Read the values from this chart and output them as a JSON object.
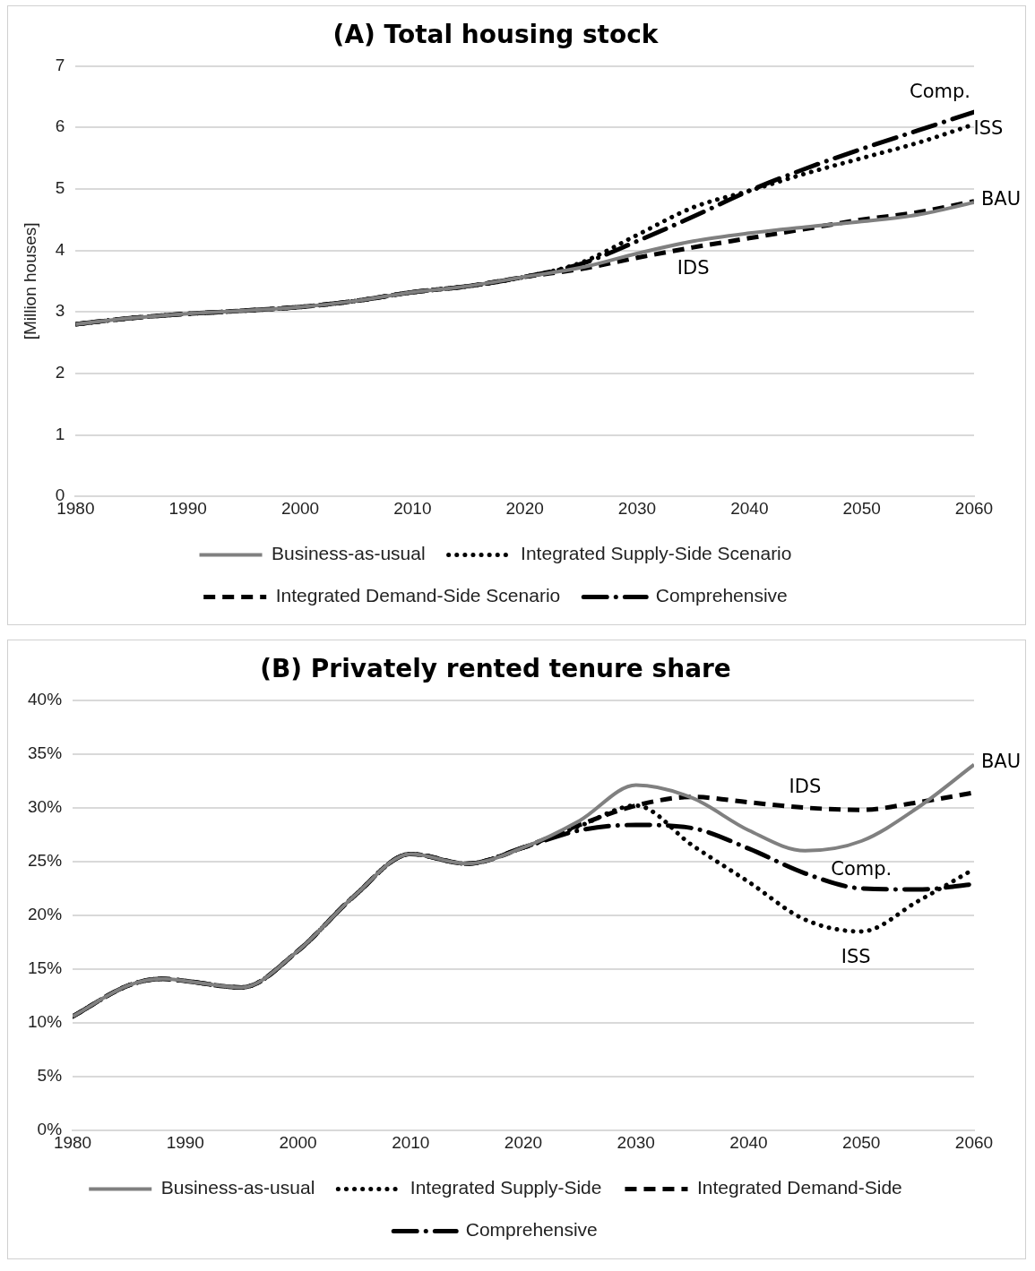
{
  "chart_data": [
    {
      "type": "line",
      "title": "(A) Total housing stock",
      "ylabel": "[Million houses]",
      "x": [
        1980,
        1985,
        1990,
        1995,
        2000,
        2005,
        2010,
        2015,
        2020,
        2025,
        2030,
        2035,
        2040,
        2045,
        2050,
        2055,
        2060
      ],
      "xlim": [
        1980,
        2060
      ],
      "xticks": [
        1980,
        1990,
        2000,
        2010,
        2020,
        2030,
        2040,
        2050,
        2060
      ],
      "ylim": [
        0,
        7
      ],
      "yticks": [
        0,
        1,
        2,
        3,
        4,
        5,
        6,
        7
      ],
      "grid": "y",
      "legend": "bottom",
      "marker": "none",
      "series": [
        {
          "name": "Business-as-usual",
          "color": "#808080",
          "line_style": "solid",
          "values": [
            2.8,
            2.9,
            2.97,
            3.02,
            3.08,
            3.18,
            3.32,
            3.42,
            3.57,
            3.72,
            3.95,
            4.15,
            4.28,
            4.38,
            4.47,
            4.58,
            4.78
          ]
        },
        {
          "name": "Integrated Supply-Side Scenario",
          "color": "#000000",
          "line_style": "dotted",
          "values": [
            2.8,
            2.9,
            2.97,
            3.02,
            3.08,
            3.18,
            3.32,
            3.42,
            3.57,
            3.8,
            4.25,
            4.7,
            4.97,
            5.25,
            5.5,
            5.75,
            6.05
          ]
        },
        {
          "name": "Integrated Demand-Side Scenario",
          "color": "#000000",
          "line_style": "dashed",
          "values": [
            2.8,
            2.9,
            2.97,
            3.02,
            3.08,
            3.18,
            3.32,
            3.42,
            3.57,
            3.7,
            3.88,
            4.05,
            4.2,
            4.35,
            4.5,
            4.62,
            4.8
          ]
        },
        {
          "name": "Comprehensive",
          "color": "#000000",
          "line_style": "dashed",
          "values": [
            2.8,
            2.9,
            2.97,
            3.02,
            3.08,
            3.18,
            3.32,
            3.42,
            3.57,
            3.78,
            4.15,
            4.55,
            4.97,
            5.33,
            5.65,
            5.95,
            6.25
          ]
        }
      ],
      "annotations": [
        {
          "text": "Comp.",
          "x": 2060,
          "y": 6.25
        },
        {
          "text": "ISS",
          "x": 2060,
          "y": 6.05
        },
        {
          "text": "BAU",
          "x": 2060,
          "y": 4.78
        },
        {
          "text": "IDS",
          "x": 2035,
          "y": 4.05
        }
      ]
    },
    {
      "type": "line",
      "title": "(B) Privately rented tenure share",
      "x": [
        1980,
        1985,
        1988,
        1990,
        1995,
        2000,
        2005,
        2010,
        2015,
        2020,
        2025,
        2030,
        2035,
        2040,
        2045,
        2050,
        2055,
        2060
      ],
      "xlim": [
        1980,
        2060
      ],
      "xticks": [
        1980,
        1990,
        2000,
        2010,
        2020,
        2030,
        2040,
        2050,
        2060
      ],
      "ylim": [
        0,
        40
      ],
      "yticks": [
        {
          "value": 0,
          "label": "0%"
        },
        {
          "value": 5,
          "label": "5%"
        },
        {
          "value": 10,
          "label": "10%"
        },
        {
          "value": 15,
          "label": "15%"
        },
        {
          "value": 20,
          "label": "20%"
        },
        {
          "value": 25,
          "label": "25%"
        },
        {
          "value": 30,
          "label": "30%"
        },
        {
          "value": 35,
          "label": "35%"
        },
        {
          "value": 40,
          "label": "40%"
        }
      ],
      "grid": "y",
      "legend": "bottom",
      "marker": "none",
      "series": [
        {
          "name": "Business-as-usual",
          "color": "#808080",
          "line_style": "solid",
          "values": [
            10.6,
            13.5,
            14.1,
            13.9,
            13.3,
            16.7,
            21.8,
            25.7,
            24.8,
            26.3,
            28.8,
            32.1,
            30.9,
            27.9,
            26.0,
            26.9,
            30.0,
            34.0
          ]
        },
        {
          "name": "Integrated Supply-Side",
          "color": "#000000",
          "line_style": "dotted",
          "values": [
            10.6,
            13.5,
            14.1,
            13.9,
            13.3,
            16.7,
            21.8,
            25.7,
            24.8,
            26.3,
            28.3,
            30.2,
            26.5,
            23.1,
            19.6,
            18.5,
            21.3,
            24.3
          ]
        },
        {
          "name": "Integrated Demand-Side",
          "color": "#000000",
          "line_style": "dashed",
          "values": [
            10.6,
            13.5,
            14.1,
            13.9,
            13.3,
            16.7,
            21.8,
            25.7,
            24.8,
            26.3,
            28.4,
            30.2,
            31.0,
            30.5,
            30.0,
            29.8,
            30.5,
            31.4
          ]
        },
        {
          "name": "Comprehensive",
          "color": "#000000",
          "line_style": "dashed",
          "values": [
            10.6,
            13.5,
            14.1,
            13.9,
            13.3,
            16.7,
            21.8,
            25.7,
            24.8,
            26.3,
            27.9,
            28.4,
            28.1,
            26.2,
            23.9,
            22.5,
            22.4,
            22.9
          ]
        }
      ],
      "annotations": [
        {
          "text": "BAU",
          "x": 2060,
          "y": 34.0
        },
        {
          "text": "IDS",
          "x": 2045,
          "y": 30.0
        },
        {
          "text": "Comp.",
          "x": 2050,
          "y": 22.5
        },
        {
          "text": "ISS",
          "x": 2050,
          "y": 18.5
        }
      ]
    }
  ]
}
